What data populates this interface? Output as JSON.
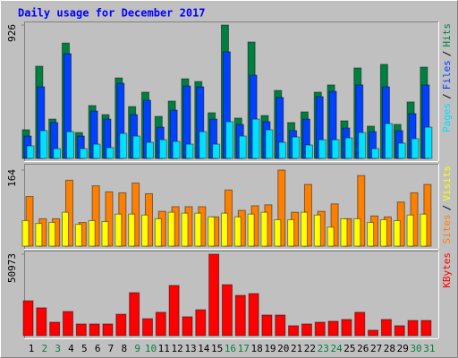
{
  "title": "Daily usage for December 2017",
  "title_color": "#0000ff",
  "legend_separator": "/",
  "chart_data": [
    {
      "type": "bar",
      "ylim": [
        0,
        926
      ],
      "yticks": [
        926
      ],
      "series": [
        {
          "name": "Hits",
          "color": "#008040",
          "values": [
            199,
            640,
            273,
            801,
            180,
            367,
            304,
            559,
            360,
            460,
            292,
            398,
            553,
            534,
            317,
            926,
            280,
            808,
            298,
            472,
            249,
            323,
            460,
            510,
            261,
            628,
            224,
            653,
            236,
            392,
            634
          ]
        },
        {
          "name": "Files",
          "color": "#0040ff",
          "values": [
            155,
            497,
            249,
            727,
            155,
            329,
            273,
            522,
            304,
            404,
            217,
            335,
            503,
            497,
            273,
            740,
            236,
            578,
            255,
            423,
            193,
            273,
            429,
            466,
            211,
            510,
            186,
            497,
            193,
            311,
            510
          ]
        },
        {
          "name": "Pages",
          "color": "#00e0ff",
          "values": [
            87,
            193,
            68,
            186,
            68,
            99,
            75,
            174,
            155,
            112,
            130,
            118,
            99,
            186,
            99,
            255,
            155,
            273,
            199,
            112,
            149,
            93,
            130,
            130,
            143,
            180,
            68,
            242,
            106,
            137,
            217
          ]
        }
      ]
    },
    {
      "type": "bar",
      "ylim": [
        0,
        164
      ],
      "yticks": [
        164
      ],
      "series": [
        {
          "name": "Visits",
          "color": "#ffff00",
          "values": [
            55,
            49,
            51,
            73,
            47,
            55,
            53,
            69,
            69,
            67,
            59,
            73,
            71,
            71,
            63,
            71,
            63,
            69,
            73,
            57,
            57,
            73,
            67,
            41,
            59,
            59,
            51,
            57,
            55,
            67,
            69
          ]
        },
        {
          "name": "Sites",
          "color": "#ff8000",
          "values": [
            107,
            59,
            59,
            142,
            51,
            130,
            117,
            115,
            136,
            113,
            75,
            85,
            85,
            85,
            63,
            121,
            77,
            87,
            89,
            164,
            73,
            133,
            75,
            91,
            59,
            152,
            65,
            63,
            95,
            115,
            133
          ]
        }
      ]
    },
    {
      "type": "bar",
      "ylim": [
        0,
        50973
      ],
      "yticks": [
        50973
      ],
      "series": [
        {
          "name": "KBytes",
          "color": "#ff0000",
          "values": [
            21800,
            17400,
            8400,
            15100,
            7300,
            7300,
            7300,
            13400,
            26900,
            10600,
            14600,
            31400,
            11800,
            16200,
            50973,
            31900,
            25200,
            26300,
            12900,
            12900,
            6200,
            7300,
            8400,
            9000,
            10100,
            14600,
            3400,
            10100,
            6200,
            9500,
            9500
          ]
        }
      ],
      "categories": [
        1,
        2,
        3,
        4,
        5,
        6,
        7,
        8,
        9,
        10,
        11,
        12,
        13,
        14,
        15,
        16,
        17,
        18,
        19,
        20,
        21,
        22,
        23,
        24,
        25,
        26,
        27,
        28,
        29,
        30,
        31
      ],
      "category_colors": [
        "#000000",
        "#008040",
        "#008040",
        "#000000",
        "#000000",
        "#000000",
        "#000000",
        "#000000",
        "#008040",
        "#008040",
        "#000000",
        "#000000",
        "#000000",
        "#000000",
        "#000000",
        "#008040",
        "#008040",
        "#000000",
        "#000000",
        "#000000",
        "#000000",
        "#000000",
        "#008040",
        "#008040",
        "#000000",
        "#000000",
        "#000000",
        "#000000",
        "#000000",
        "#008040",
        "#008040"
      ]
    }
  ]
}
